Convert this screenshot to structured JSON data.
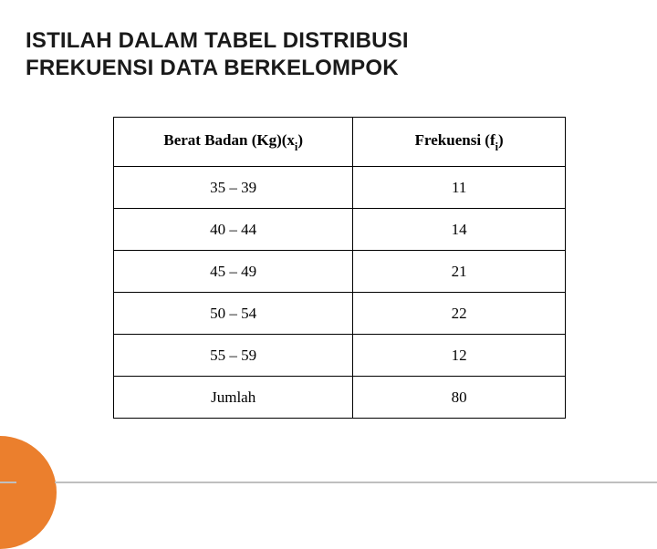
{
  "title_line1": "ISTILAH DALAM TABEL DISTRIBUSI",
  "title_line2": "FREKUENSI DATA BERKELOMPOK",
  "table": {
    "type": "table",
    "columns": [
      {
        "label_pre": "Berat Badan (Kg)(x",
        "label_sub": "i",
        "label_post": ")",
        "align": "center",
        "width_pct": 53
      },
      {
        "label_pre": "Frekuensi (f",
        "label_sub": "i",
        "label_post": ")",
        "align": "center",
        "width_pct": 47
      }
    ],
    "rows": [
      {
        "range": "35 – 39",
        "freq": "11"
      },
      {
        "range": "40 – 44",
        "freq": "14"
      },
      {
        "range": "45 – 49",
        "freq": "21"
      },
      {
        "range": "50 – 54",
        "freq": "22"
      },
      {
        "range": "55 – 59",
        "freq": "12"
      },
      {
        "range": "Jumlah",
        "freq": "80"
      }
    ],
    "border_color": "#000000",
    "background_color": "#ffffff",
    "header_fontsize_pt": 13,
    "body_fontsize_pt": 13,
    "font_family": "Times New Roman"
  },
  "accent_circle_color": "#eb7f2d",
  "rule_color": "#bfbfbf"
}
